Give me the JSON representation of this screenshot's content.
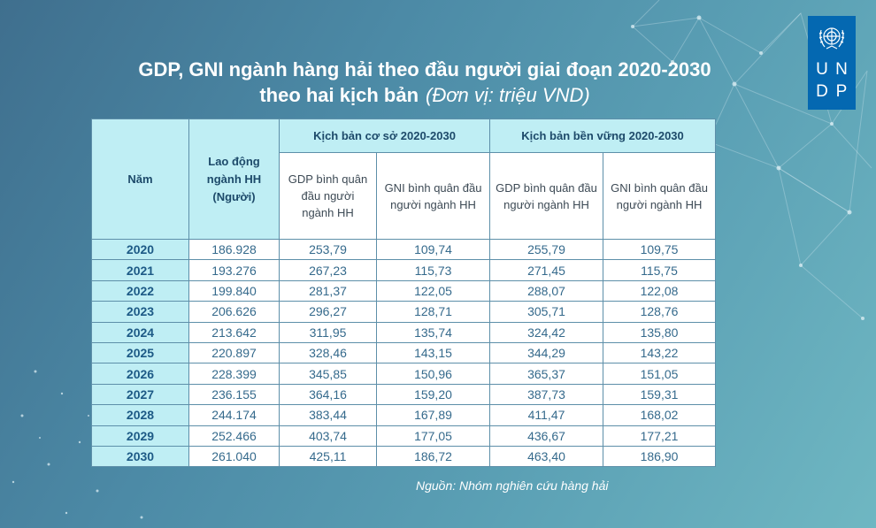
{
  "title": {
    "line1": "GDP, GNI ngành hàng hải theo đầu người giai đoạn 2020-2030",
    "line2": "theo hai kịch bản",
    "unit": "(Đơn vị: triệu VND)"
  },
  "logo": {
    "letters": [
      "U",
      "N",
      "D",
      "P"
    ],
    "icon": "un-emblem-icon"
  },
  "table": {
    "header": {
      "year": "Năm",
      "labor": "Lao động ngành HH (Người)",
      "scenario_base": "Kịch bản cơ sở 2020-2030",
      "scenario_sustainable": "Kịch bản bền vững 2020-2030",
      "gdp_base": "GDP bình quân đầu người ngành HH",
      "gni_base": "GNI bình quân đầu người ngành HH",
      "gdp_sust": "GDP bình quân đầu người ngành HH",
      "gni_sust": "GNI bình quân đầu người ngành HH"
    },
    "rows": [
      [
        "2020",
        "186.928",
        "253,79",
        "109,74",
        "255,79",
        "109,75"
      ],
      [
        "2021",
        "193.276",
        "267,23",
        "115,73",
        "271,45",
        "115,75"
      ],
      [
        "2022",
        "199.840",
        "281,37",
        "122,05",
        "288,07",
        "122,08"
      ],
      [
        "2023",
        "206.626",
        "296,27",
        "128,71",
        "305,71",
        "128,76"
      ],
      [
        "2024",
        "213.642",
        "311,95",
        "135,74",
        "324,42",
        "135,80"
      ],
      [
        "2025",
        "220.897",
        "328,46",
        "143,15",
        "344,29",
        "143,22"
      ],
      [
        "2026",
        "228.399",
        "345,85",
        "150,96",
        "365,37",
        "151,05"
      ],
      [
        "2027",
        "236.155",
        "364,16",
        "159,20",
        "387,73",
        "159,31"
      ],
      [
        "2028",
        "244.174",
        "383,44",
        "167,89",
        "411,47",
        "168,02"
      ],
      [
        "2029",
        "252.466",
        "403,74",
        "177,05",
        "436,67",
        "177,21"
      ],
      [
        "2030",
        "261.040",
        "425,11",
        "186,72",
        "463,40",
        "186,90"
      ]
    ]
  },
  "source": "Nguồn: Nhóm nghiên cứu hàng hải"
}
